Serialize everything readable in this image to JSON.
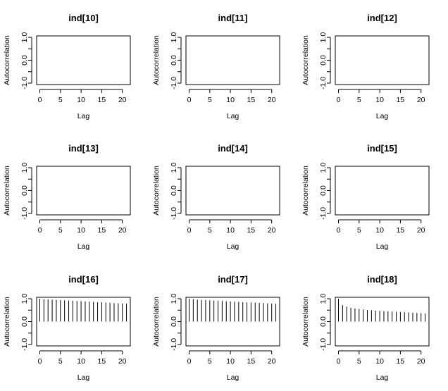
{
  "chart_data": [
    {
      "type": "bar",
      "title": "ind[10]",
      "xlabel": "Lag",
      "ylabel": "Autocorrelation",
      "xlim": [
        0,
        21
      ],
      "ylim": [
        -1,
        1
      ],
      "x_ticks": [
        "0",
        "5",
        "10",
        "15",
        "20"
      ],
      "y_ticks": [
        "-1.0",
        "0.0",
        "1.0"
      ],
      "lags": [],
      "values": []
    },
    {
      "type": "bar",
      "title": "ind[11]",
      "xlabel": "Lag",
      "ylabel": "Autocorrelation",
      "xlim": [
        0,
        21
      ],
      "ylim": [
        -1,
        1
      ],
      "x_ticks": [
        "0",
        "5",
        "10",
        "15",
        "20"
      ],
      "y_ticks": [
        "-1.0",
        "0.0",
        "1.0"
      ],
      "lags": [],
      "values": []
    },
    {
      "type": "bar",
      "title": "ind[12]",
      "xlabel": "Lag",
      "ylabel": "Autocorrelation",
      "xlim": [
        0,
        21
      ],
      "ylim": [
        -1,
        1
      ],
      "x_ticks": [
        "0",
        "5",
        "10",
        "15",
        "20"
      ],
      "y_ticks": [
        "-1.0",
        "0.0",
        "1.0"
      ],
      "lags": [],
      "values": []
    },
    {
      "type": "bar",
      "title": "ind[13]",
      "xlabel": "Lag",
      "ylabel": "Autocorrelation",
      "xlim": [
        0,
        21
      ],
      "ylim": [
        -1,
        1
      ],
      "x_ticks": [
        "0",
        "5",
        "10",
        "15",
        "20"
      ],
      "y_ticks": [
        "-1.0",
        "0.0",
        "1.0"
      ],
      "lags": [],
      "values": []
    },
    {
      "type": "bar",
      "title": "ind[14]",
      "xlabel": "Lag",
      "ylabel": "Autocorrelation",
      "xlim": [
        0,
        21
      ],
      "ylim": [
        -1,
        1
      ],
      "x_ticks": [
        "0",
        "5",
        "10",
        "15",
        "20"
      ],
      "y_ticks": [
        "-1.0",
        "0.0",
        "1.0"
      ],
      "lags": [],
      "values": []
    },
    {
      "type": "bar",
      "title": "ind[15]",
      "xlabel": "Lag",
      "ylabel": "Autocorrelation",
      "xlim": [
        0,
        21
      ],
      "ylim": [
        -1,
        1
      ],
      "x_ticks": [
        "0",
        "5",
        "10",
        "15",
        "20"
      ],
      "y_ticks": [
        "-1.0",
        "0.0",
        "1.0"
      ],
      "lags": [],
      "values": []
    },
    {
      "type": "bar",
      "title": "ind[16]",
      "xlabel": "Lag",
      "ylabel": "Autocorrelation",
      "xlim": [
        0,
        21
      ],
      "ylim": [
        -1,
        1
      ],
      "x_ticks": [
        "0",
        "5",
        "10",
        "15",
        "20"
      ],
      "y_ticks": [
        "-1.0",
        "0.0",
        "1.0"
      ],
      "lags": [
        0,
        1,
        2,
        3,
        4,
        5,
        6,
        7,
        8,
        9,
        10,
        11,
        12,
        13,
        14,
        15,
        16,
        17,
        18,
        19,
        20,
        21
      ],
      "values": [
        1.0,
        0.98,
        0.97,
        0.96,
        0.95,
        0.94,
        0.93,
        0.92,
        0.91,
        0.9,
        0.89,
        0.88,
        0.87,
        0.86,
        0.85,
        0.84,
        0.83,
        0.82,
        0.81,
        0.8,
        0.79,
        0.78
      ]
    },
    {
      "type": "bar",
      "title": "ind[17]",
      "xlabel": "Lag",
      "ylabel": "Autocorrelation",
      "xlim": [
        0,
        21
      ],
      "ylim": [
        -1,
        1
      ],
      "x_ticks": [
        "0",
        "5",
        "10",
        "15",
        "20"
      ],
      "y_ticks": [
        "-1.0",
        "0.0",
        "1.0"
      ],
      "lags": [
        0,
        1,
        2,
        3,
        4,
        5,
        6,
        7,
        8,
        9,
        10,
        11,
        12,
        13,
        14,
        15,
        16,
        17,
        18,
        19,
        20,
        21
      ],
      "values": [
        1.0,
        0.98,
        0.96,
        0.95,
        0.94,
        0.93,
        0.92,
        0.91,
        0.9,
        0.89,
        0.88,
        0.87,
        0.86,
        0.85,
        0.84,
        0.84,
        0.83,
        0.82,
        0.81,
        0.8,
        0.79,
        0.78
      ]
    },
    {
      "type": "bar",
      "title": "ind[18]",
      "xlabel": "Lag",
      "ylabel": "Autocorrelation",
      "xlim": [
        0,
        21
      ],
      "ylim": [
        -1,
        1
      ],
      "x_ticks": [
        "0",
        "5",
        "10",
        "15",
        "20"
      ],
      "y_ticks": [
        "-1.0",
        "0.0",
        "1.0"
      ],
      "lags": [
        0,
        1,
        2,
        3,
        4,
        5,
        6,
        7,
        8,
        9,
        10,
        11,
        12,
        13,
        14,
        15,
        16,
        17,
        18,
        19,
        20,
        21
      ],
      "values": [
        1.0,
        0.72,
        0.65,
        0.6,
        0.57,
        0.55,
        0.53,
        0.51,
        0.5,
        0.48,
        0.47,
        0.46,
        0.45,
        0.44,
        0.43,
        0.42,
        0.41,
        0.4,
        0.39,
        0.38,
        0.37,
        0.36
      ]
    }
  ]
}
